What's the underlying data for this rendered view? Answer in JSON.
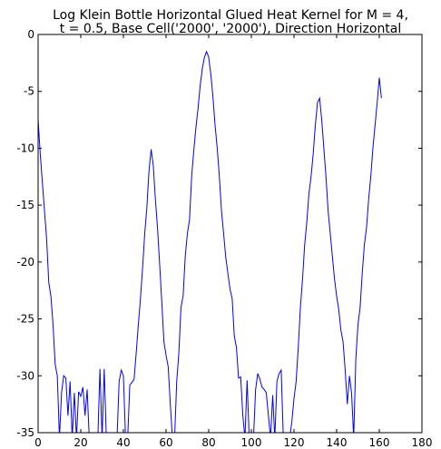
{
  "chart_data": {
    "type": "line",
    "title": [
      "Log Klein Bottle Horizontal Glued Heat Kernel for M = 4,",
      "t = 0.5, Base Cell('2000', '2000'), Direction Horizontal"
    ],
    "xlabel": "",
    "ylabel": "",
    "xlim": [
      0,
      180
    ],
    "ylim": [
      -35,
      0
    ],
    "xticks": [
      0,
      20,
      40,
      60,
      80,
      100,
      120,
      140,
      160,
      180
    ],
    "yticks": [
      0,
      -5,
      -10,
      -15,
      -20,
      -25,
      -30,
      -35
    ],
    "grid": false,
    "line_color": "#0000ff",
    "series": [
      {
        "x": [
          0,
          1,
          2,
          3,
          4,
          5,
          6,
          7,
          8,
          9,
          10,
          11,
          12,
          13,
          14,
          15,
          16,
          17,
          18,
          19,
          20,
          21,
          22,
          23,
          24,
          25,
          26,
          27,
          28,
          29,
          30,
          31,
          32,
          33,
          34,
          35,
          36,
          37,
          38,
          39,
          40,
          41,
          42,
          43,
          44,
          45,
          46,
          47,
          48,
          49,
          50,
          51,
          52,
          53,
          54,
          55,
          56,
          57,
          58,
          59,
          60,
          61,
          62,
          63,
          64,
          65,
          66,
          67,
          68,
          69,
          70,
          71,
          72,
          73,
          74,
          75,
          76,
          77,
          78,
          79,
          80,
          81,
          82,
          83,
          84,
          85,
          86,
          87,
          88,
          89,
          90,
          91,
          92,
          93,
          94,
          95,
          96,
          97,
          98,
          99,
          100,
          101,
          102,
          103,
          104,
          105,
          106,
          107,
          108,
          109,
          110,
          111,
          112,
          113,
          114,
          115,
          116,
          117,
          118,
          119,
          120,
          121,
          122,
          123,
          124,
          125,
          126,
          127,
          128,
          129,
          130,
          131,
          132,
          133,
          134,
          135,
          136,
          137,
          138,
          139,
          140,
          141,
          142,
          143,
          144,
          145,
          146,
          147,
          148,
          149,
          150,
          151,
          152,
          153,
          154,
          155,
          156,
          157,
          158,
          159,
          160,
          161
        ],
        "y": [
          -7.5,
          -10.5,
          -13.0,
          -15.5,
          -18.0,
          -21.8,
          -23.0,
          -25.5,
          -29.0,
          -30.0,
          -35.5,
          -31.5,
          -30.0,
          -30.2,
          -33.5,
          -30.5,
          -35.5,
          -31.5,
          -35.5,
          -31.4,
          -31.8,
          -31.0,
          -33.5,
          -31.2,
          -35.5,
          -35.5,
          -35.5,
          -35.5,
          -35.5,
          -29.4,
          -35.5,
          -29.4,
          -35.5,
          -35.5,
          -35.5,
          -35.5,
          -35.5,
          -35.5,
          -30.5,
          -29.5,
          -30.0,
          -35.5,
          -35.5,
          -30.8,
          -30.6,
          -30.3,
          -28.0,
          -25.5,
          -23.2,
          -20.5,
          -17.5,
          -15.2,
          -12.0,
          -10.1,
          -11.5,
          -14.5,
          -17.0,
          -20.2,
          -23.5,
          -27.0,
          -28.2,
          -29.2,
          -32.5,
          -35.5,
          -35.5,
          -30.5,
          -28.0,
          -24.0,
          -23.0,
          -19.5,
          -17.5,
          -16.3,
          -12.5,
          -10.2,
          -8.2,
          -6.5,
          -4.5,
          -3.0,
          -2.0,
          -1.5,
          -2.0,
          -3.5,
          -5.5,
          -8.0,
          -10.0,
          -12.5,
          -15.5,
          -17.5,
          -19.6,
          -21.0,
          -22.4,
          -23.2,
          -26.5,
          -27.5,
          -30.2,
          -30.1,
          -33.5,
          -35.5,
          -30.4,
          -35.5,
          -35.5,
          -35.5,
          -31.2,
          -29.8,
          -30.3,
          -31.0,
          -31.2,
          -31.5,
          -33.5,
          -35.5,
          -31.7,
          -35.5,
          -30.5,
          -29.8,
          -29.5,
          -35.5,
          -35.5,
          -35.5,
          -35.5,
          -34.0,
          -32.0,
          -30.5,
          -27.5,
          -24.0,
          -21.5,
          -18.5,
          -16.5,
          -14.0,
          -12.5,
          -10.5,
          -8.0,
          -6.0,
          -5.6,
          -7.5,
          -10.0,
          -12.5,
          -15.5,
          -17.5,
          -19.5,
          -21.5,
          -23.0,
          -24.2,
          -26.0,
          -27.0,
          -29.5,
          -32.5,
          -30.0,
          -31.5,
          -35.5,
          -28.5,
          -25.5,
          -24.0,
          -21.0,
          -18.5,
          -17.0,
          -14.5,
          -12.5,
          -10.0,
          -8.0,
          -6.0,
          -3.8,
          -5.6
        ]
      }
    ]
  }
}
